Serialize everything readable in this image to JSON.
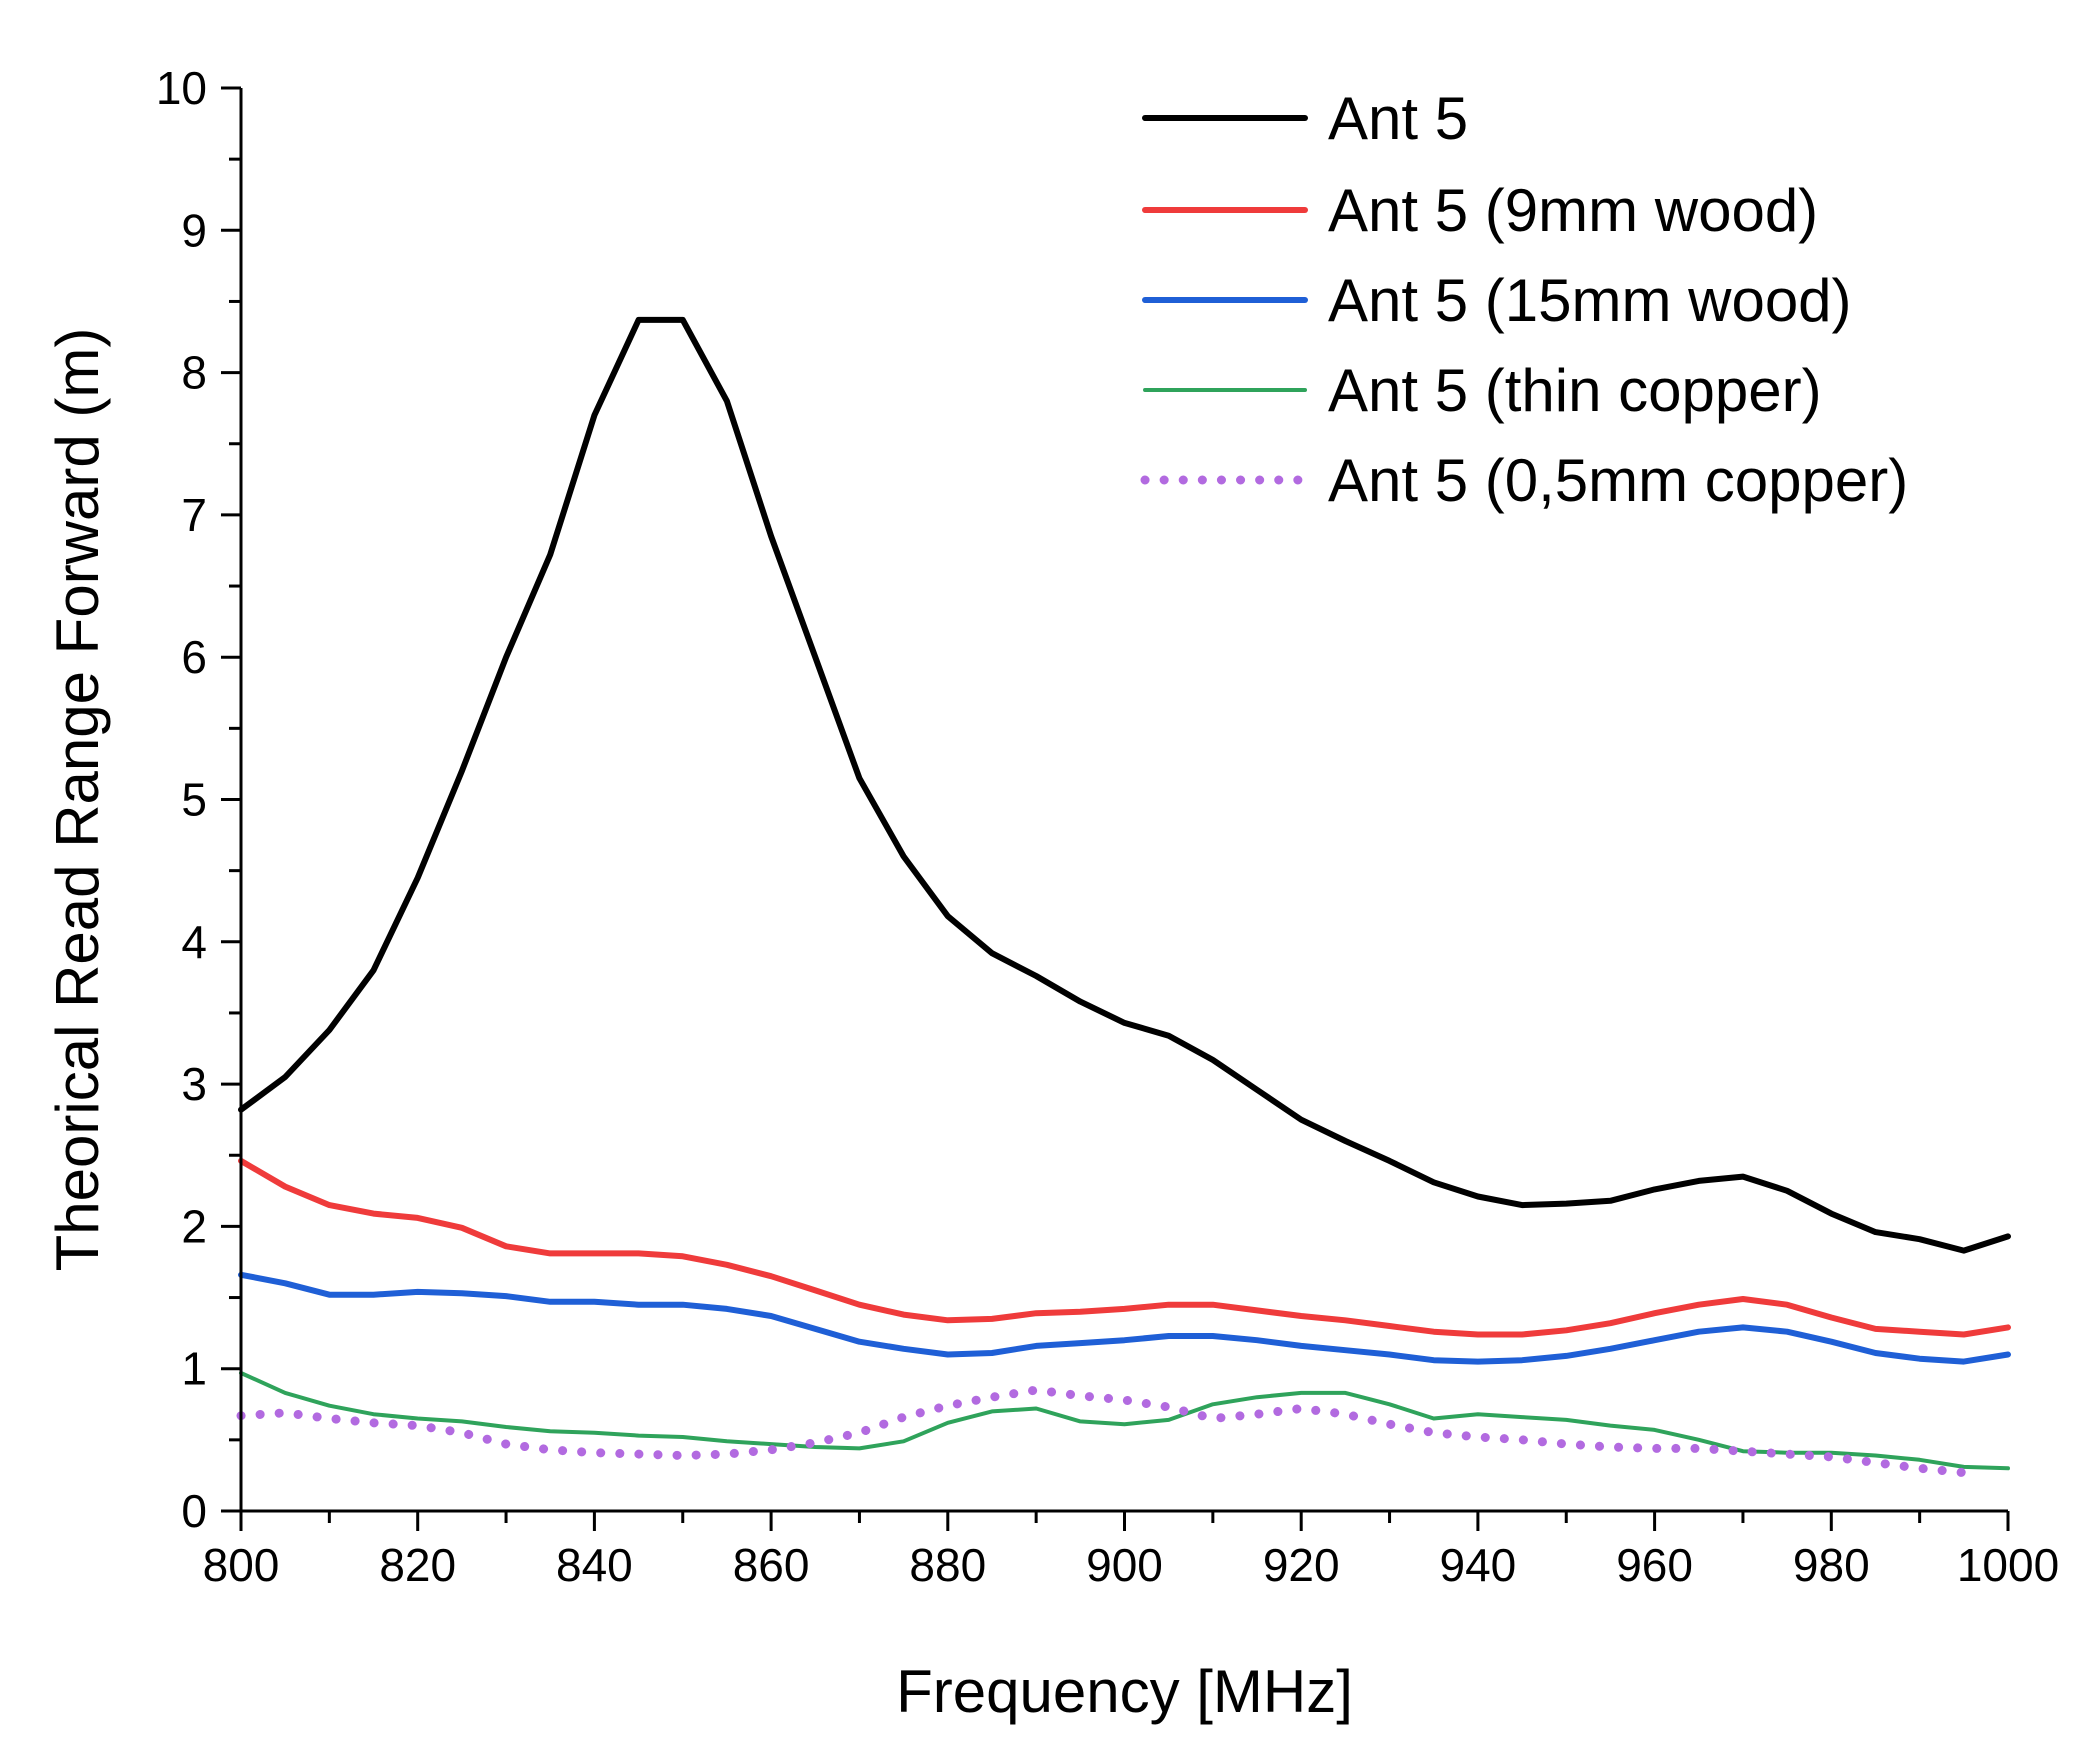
{
  "chart_data": {
    "type": "line",
    "xlabel": "Frequency [MHz]",
    "ylabel": "Theorical Read Range Forward (m)",
    "xlim": [
      800,
      1000
    ],
    "ylim": [
      0,
      10
    ],
    "xticks": [
      "800",
      "820",
      "840",
      "860",
      "880",
      "900",
      "920",
      "940",
      "960",
      "980",
      "1000"
    ],
    "yticks": [
      "0",
      "1",
      "2",
      "3",
      "4",
      "5",
      "6",
      "7",
      "8",
      "9",
      "10"
    ],
    "grid": false,
    "legend_position": "top-right",
    "x": [
      800,
      805,
      810,
      815,
      820,
      825,
      830,
      835,
      840,
      845,
      850,
      855,
      860,
      865,
      870,
      875,
      880,
      885,
      890,
      895,
      900,
      905,
      910,
      915,
      920,
      925,
      930,
      935,
      940,
      945,
      950,
      955,
      960,
      965,
      970,
      975,
      980,
      985,
      990,
      995,
      1000
    ],
    "series": [
      {
        "name": "Ant 5",
        "color": "#000000",
        "style": "solid",
        "values": [
          2.82,
          3.05,
          3.38,
          3.8,
          4.45,
          5.2,
          6.0,
          6.72,
          7.7,
          8.37,
          8.37,
          7.8,
          6.85,
          6.0,
          5.15,
          4.6,
          4.18,
          3.92,
          3.76,
          3.58,
          3.43,
          3.34,
          3.17,
          2.96,
          2.75,
          2.6,
          2.46,
          2.31,
          2.21,
          2.15,
          2.16,
          2.18,
          2.26,
          2.32,
          2.35,
          2.25,
          2.09,
          1.96,
          1.91,
          1.83,
          1.93
        ]
      },
      {
        "name": "Ant 5 (9mm wood)",
        "color": "#ef3b3b",
        "style": "solid",
        "values": [
          2.46,
          2.28,
          2.15,
          2.09,
          2.06,
          1.99,
          1.86,
          1.81,
          1.81,
          1.81,
          1.79,
          1.73,
          1.65,
          1.55,
          1.45,
          1.38,
          1.34,
          1.35,
          1.39,
          1.4,
          1.42,
          1.45,
          1.45,
          1.41,
          1.37,
          1.34,
          1.3,
          1.26,
          1.24,
          1.24,
          1.27,
          1.32,
          1.39,
          1.45,
          1.49,
          1.45,
          1.36,
          1.28,
          1.26,
          1.24,
          1.29
        ]
      },
      {
        "name": "Ant 5 (15mm wood)",
        "color": "#1f5fd6",
        "style": "solid",
        "values": [
          1.66,
          1.6,
          1.52,
          1.52,
          1.54,
          1.53,
          1.51,
          1.47,
          1.47,
          1.45,
          1.45,
          1.42,
          1.37,
          1.28,
          1.19,
          1.14,
          1.1,
          1.11,
          1.16,
          1.18,
          1.2,
          1.23,
          1.23,
          1.2,
          1.16,
          1.13,
          1.1,
          1.06,
          1.05,
          1.06,
          1.09,
          1.14,
          1.2,
          1.26,
          1.29,
          1.26,
          1.19,
          1.11,
          1.07,
          1.05,
          1.1
        ]
      },
      {
        "name": "Ant 5 (thin copper)",
        "color": "#2fa35b",
        "style": "solid",
        "values": [
          0.97,
          0.83,
          0.74,
          0.68,
          0.65,
          0.63,
          0.59,
          0.56,
          0.55,
          0.53,
          0.52,
          0.49,
          0.47,
          0.45,
          0.44,
          0.49,
          0.62,
          0.7,
          0.72,
          0.63,
          0.61,
          0.64,
          0.75,
          0.8,
          0.83,
          0.83,
          0.75,
          0.65,
          0.68,
          0.66,
          0.64,
          0.6,
          0.57,
          0.5,
          0.42,
          0.41,
          0.41,
          0.39,
          0.36,
          0.31,
          0.3
        ]
      },
      {
        "name": "Ant 5 (0,5mm copper)",
        "color": "#b26ae0",
        "style": "dotted",
        "values": [
          0.67,
          0.69,
          0.65,
          0.62,
          0.6,
          0.55,
          0.47,
          0.43,
          0.41,
          0.4,
          0.39,
          0.4,
          0.43,
          0.48,
          0.55,
          0.66,
          0.74,
          0.8,
          0.85,
          0.81,
          0.78,
          0.73,
          0.65,
          0.68,
          0.72,
          0.68,
          0.61,
          0.55,
          0.52,
          0.5,
          0.47,
          0.45,
          0.44,
          0.44,
          0.42,
          0.4,
          0.38,
          0.34,
          0.3,
          0.27,
          null
        ]
      }
    ]
  }
}
